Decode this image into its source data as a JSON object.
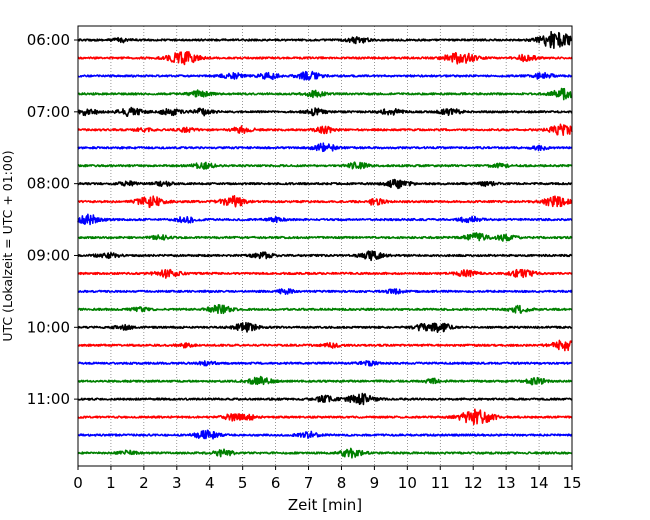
{
  "chart_data": {
    "type": "line",
    "title": "",
    "xlabel": "Zeit  [min]",
    "ylabel": "UTC (Lokalzeit = UTC + 01:00)",
    "xlim": [
      0,
      15
    ],
    "x_ticks": [
      "0",
      "1",
      "2",
      "3",
      "4",
      "5",
      "6",
      "7",
      "8",
      "9",
      "10",
      "11",
      "12",
      "13",
      "14",
      "15"
    ],
    "y_tick_labels": [
      "06:00",
      "07:00",
      "08:00",
      "09:00",
      "10:00",
      "11:00"
    ],
    "grid": "vertical dotted lines at each minute",
    "trace_colors": [
      "#000000",
      "#ff0000",
      "#0000ff",
      "#008000"
    ],
    "trace_interval_min": 15,
    "traces": [
      {
        "start": "06:00",
        "color": "#000000",
        "events": [
          {
            "t": 1.3,
            "a": 2
          },
          {
            "t": 8.5,
            "a": 3
          },
          {
            "t": 14.4,
            "a": 6
          },
          {
            "t": 14.7,
            "a": 4
          }
        ]
      },
      {
        "start": "06:15",
        "color": "#ff0000",
        "events": [
          {
            "t": 3.2,
            "a": 6
          },
          {
            "t": 11.6,
            "a": 6
          },
          {
            "t": 13.6,
            "a": 3
          }
        ]
      },
      {
        "start": "06:30",
        "color": "#0000ff",
        "events": [
          {
            "t": 4.7,
            "a": 3
          },
          {
            "t": 5.8,
            "a": 3
          },
          {
            "t": 7.0,
            "a": 4
          },
          {
            "t": 14.1,
            "a": 3
          }
        ]
      },
      {
        "start": "06:45",
        "color": "#008000",
        "events": [
          {
            "t": 3.7,
            "a": 3
          },
          {
            "t": 7.2,
            "a": 3
          },
          {
            "t": 14.8,
            "a": 5
          }
        ]
      },
      {
        "start": "07:00",
        "color": "#000000",
        "events": [
          {
            "t": 0.3,
            "a": 3
          },
          {
            "t": 1.6,
            "a": 4
          },
          {
            "t": 2.8,
            "a": 3
          },
          {
            "t": 3.8,
            "a": 3
          },
          {
            "t": 7.2,
            "a": 3
          },
          {
            "t": 9.5,
            "a": 3
          },
          {
            "t": 11.3,
            "a": 3
          }
        ]
      },
      {
        "start": "07:15",
        "color": "#ff0000",
        "events": [
          {
            "t": 2.0,
            "a": 2
          },
          {
            "t": 3.3,
            "a": 2
          },
          {
            "t": 5.0,
            "a": 3
          },
          {
            "t": 7.5,
            "a": 3
          },
          {
            "t": 14.7,
            "a": 5
          }
        ]
      },
      {
        "start": "07:30",
        "color": "#0000ff",
        "events": [
          {
            "t": 7.5,
            "a": 4
          },
          {
            "t": 14.0,
            "a": 2
          }
        ]
      },
      {
        "start": "07:45",
        "color": "#008000",
        "events": [
          {
            "t": 3.8,
            "a": 3
          },
          {
            "t": 8.5,
            "a": 3
          },
          {
            "t": 12.8,
            "a": 2
          }
        ]
      },
      {
        "start": "08:00",
        "color": "#000000",
        "events": [
          {
            "t": 1.5,
            "a": 2
          },
          {
            "t": 2.6,
            "a": 2
          },
          {
            "t": 9.7,
            "a": 4
          },
          {
            "t": 12.4,
            "a": 2
          }
        ]
      },
      {
        "start": "08:15",
        "color": "#ff0000",
        "events": [
          {
            "t": 2.2,
            "a": 5
          },
          {
            "t": 4.7,
            "a": 5
          },
          {
            "t": 9.0,
            "a": 3
          },
          {
            "t": 14.5,
            "a": 5
          }
        ]
      },
      {
        "start": "08:30",
        "color": "#0000ff",
        "events": [
          {
            "t": 0.3,
            "a": 5
          },
          {
            "t": 3.3,
            "a": 3
          },
          {
            "t": 6.0,
            "a": 2
          },
          {
            "t": 11.9,
            "a": 3
          }
        ]
      },
      {
        "start": "08:45",
        "color": "#008000",
        "events": [
          {
            "t": 2.5,
            "a": 2
          },
          {
            "t": 12.1,
            "a": 4
          },
          {
            "t": 13.0,
            "a": 3
          }
        ]
      },
      {
        "start": "09:00",
        "color": "#000000",
        "events": [
          {
            "t": 0.9,
            "a": 3
          },
          {
            "t": 5.6,
            "a": 3
          },
          {
            "t": 8.9,
            "a": 4
          }
        ]
      },
      {
        "start": "09:15",
        "color": "#ff0000",
        "events": [
          {
            "t": 2.7,
            "a": 4
          },
          {
            "t": 11.8,
            "a": 3
          },
          {
            "t": 13.5,
            "a": 4
          }
        ]
      },
      {
        "start": "09:30",
        "color": "#0000ff",
        "events": [
          {
            "t": 6.3,
            "a": 2
          },
          {
            "t": 9.6,
            "a": 2
          }
        ]
      },
      {
        "start": "09:45",
        "color": "#008000",
        "events": [
          {
            "t": 1.9,
            "a": 2
          },
          {
            "t": 4.3,
            "a": 4
          },
          {
            "t": 13.4,
            "a": 3
          }
        ]
      },
      {
        "start": "10:00",
        "color": "#000000",
        "events": [
          {
            "t": 1.4,
            "a": 2
          },
          {
            "t": 5.1,
            "a": 4
          },
          {
            "t": 10.5,
            "a": 3
          },
          {
            "t": 11.0,
            "a": 4
          }
        ]
      },
      {
        "start": "10:15",
        "color": "#ff0000",
        "events": [
          {
            "t": 3.3,
            "a": 2
          },
          {
            "t": 7.7,
            "a": 2
          },
          {
            "t": 14.8,
            "a": 5
          }
        ]
      },
      {
        "start": "10:30",
        "color": "#0000ff",
        "events": [
          {
            "t": 3.9,
            "a": 2
          },
          {
            "t": 8.8,
            "a": 2
          }
        ]
      },
      {
        "start": "10:45",
        "color": "#008000",
        "events": [
          {
            "t": 5.5,
            "a": 4
          },
          {
            "t": 10.8,
            "a": 2
          },
          {
            "t": 13.9,
            "a": 3
          }
        ]
      },
      {
        "start": "11:00",
        "color": "#000000",
        "events": [
          {
            "t": 7.5,
            "a": 3
          },
          {
            "t": 8.6,
            "a": 5
          }
        ]
      },
      {
        "start": "11:15",
        "color": "#ff0000",
        "events": [
          {
            "t": 4.7,
            "a": 3
          },
          {
            "t": 5.2,
            "a": 2
          },
          {
            "t": 12.1,
            "a": 7
          }
        ]
      },
      {
        "start": "11:30",
        "color": "#0000ff",
        "events": [
          {
            "t": 3.9,
            "a": 4
          },
          {
            "t": 7.0,
            "a": 3
          }
        ]
      },
      {
        "start": "11:45",
        "color": "#008000",
        "events": [
          {
            "t": 1.5,
            "a": 2
          },
          {
            "t": 4.4,
            "a": 3
          },
          {
            "t": 8.3,
            "a": 4
          }
        ]
      }
    ]
  }
}
